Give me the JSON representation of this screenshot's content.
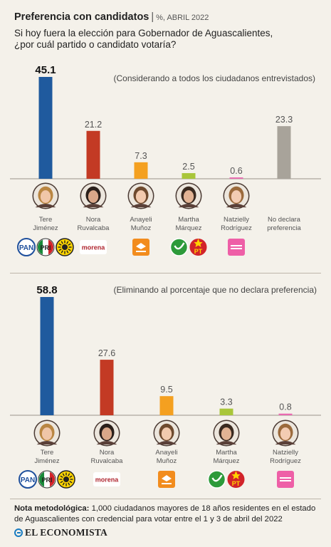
{
  "header": {
    "title": "Preferencia con candidatos",
    "separator": "|",
    "unit": "%, ABRIL 2022",
    "question_line1": "Si hoy fuera la elección para Gobernador de Aguascalientes,",
    "question_line2": "¿por cuál partido o candidato votaría?"
  },
  "chart_data": [
    {
      "type": "bar",
      "subtitle": "(Considerando a todos los ciudadanos entrevistados)",
      "categories": [
        "Tere Jiménez",
        "Nora Ruvalcaba",
        "Anayeli Muñoz",
        "Martha Márquez",
        "Natzielly Rodríguez",
        "No declara preferencia"
      ],
      "category_lines": [
        [
          "Tere",
          "Jiménez"
        ],
        [
          "Nora",
          "Ruvalcaba"
        ],
        [
          "Anayeli",
          "Muñoz"
        ],
        [
          "Martha",
          "Márquez"
        ],
        [
          "Natzielly",
          "Rodríguez"
        ],
        [
          "No declara",
          "preferencia"
        ]
      ],
      "values": [
        45.1,
        21.2,
        7.3,
        2.5,
        0.6,
        23.3
      ],
      "value_labels": [
        "45.1",
        "21.2",
        "7.3",
        "2.5",
        "0.6",
        "23.3"
      ],
      "colors": [
        "#1f5a9e",
        "#c33a24",
        "#f4a020",
        "#a9c63a",
        "#e96ab0",
        "#a8a39a"
      ],
      "ylim": [
        0,
        45.1
      ],
      "highlight_first_label": true
    },
    {
      "type": "bar",
      "subtitle": "(Eliminando al porcentaje que no declara preferencia)",
      "categories": [
        "Tere Jiménez",
        "Nora Ruvalcaba",
        "Anayeli Muñoz",
        "Martha Márquez",
        "Natzielly Rodríguez"
      ],
      "category_lines": [
        [
          "Tere",
          "Jiménez"
        ],
        [
          "Nora",
          "Ruvalcaba"
        ],
        [
          "Anayeli",
          "Muñoz"
        ],
        [
          "Martha",
          "Márquez"
        ],
        [
          "Natzielly",
          "Rodríguez"
        ]
      ],
      "values": [
        58.8,
        27.6,
        9.5,
        3.3,
        0.8
      ],
      "value_labels": [
        "58.8",
        "27.6",
        "9.5",
        "3.3",
        "0.8"
      ],
      "colors": [
        "#1f5a9e",
        "#c33a24",
        "#f4a020",
        "#a9c63a",
        "#e96ab0"
      ],
      "ylim": [
        0,
        58.8
      ],
      "highlight_first_label": true
    }
  ],
  "party_logos": [
    [
      {
        "name": "pan-logo",
        "text": "PAN",
        "kind": "pan"
      },
      {
        "name": "pri-logo",
        "text": "PRI",
        "kind": "pri"
      },
      {
        "name": "prd-logo",
        "text": "",
        "kind": "prd"
      }
    ],
    [
      {
        "name": "morena-logo",
        "text": "morena",
        "kind": "morena"
      }
    ],
    [
      {
        "name": "movimiento-ciudadano-logo",
        "text": "",
        "kind": "mc"
      }
    ],
    [
      {
        "name": "pvem-logo",
        "text": "",
        "kind": "pvem"
      },
      {
        "name": "pt-logo",
        "text": "PT",
        "kind": "pt"
      }
    ],
    [
      {
        "name": "fuerza-por-mexico-logo",
        "text": "",
        "kind": "fxm"
      }
    ]
  ],
  "footer": {
    "note_label": "Nota metodológica:",
    "note_text": " 1,000 ciudadanos mayores de 18 años residentes en el estado de Aguascalientes con credencial para votar entre el 1 y 3 de abril del 2022",
    "brand": "EL ECONOMISTA"
  }
}
